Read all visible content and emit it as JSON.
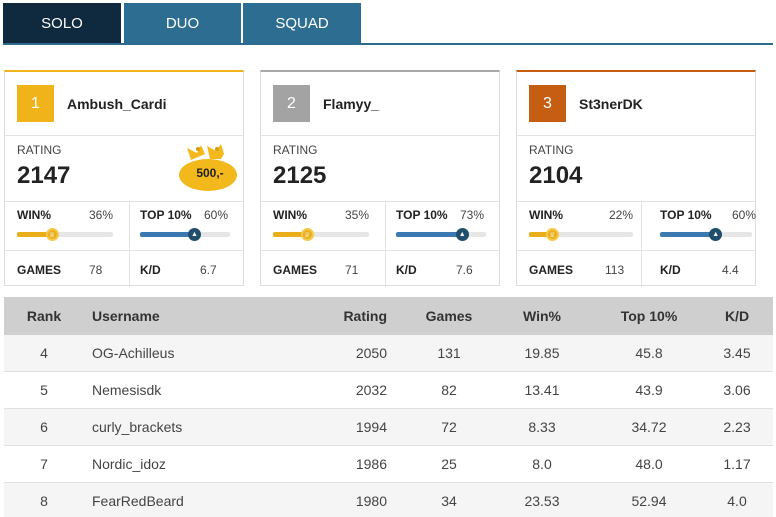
{
  "tabs": [
    {
      "label": "SOLO",
      "active": true
    },
    {
      "label": "DUO",
      "active": false
    },
    {
      "label": "SQUAD",
      "active": false
    }
  ],
  "labels": {
    "rating": "RATING",
    "win": "WIN%",
    "top10": "TOP 10%",
    "games": "GAMES",
    "kd": "K/D"
  },
  "podium": [
    {
      "rank": "1",
      "name": "Ambush_Cardi",
      "rating": "2147",
      "win": "36%",
      "win_fraction": 0.36,
      "top10": "60%",
      "top10_fraction": 0.6,
      "games": "78",
      "kd": "6.7",
      "prize": "500,-",
      "color": "#f0b41a"
    },
    {
      "rank": "2",
      "name": "Flamyy_",
      "rating": "2125",
      "win": "35%",
      "win_fraction": 0.35,
      "top10": "73%",
      "top10_fraction": 0.73,
      "games": "71",
      "kd": "7.6",
      "color": "#a3a3a3"
    },
    {
      "rank": "3",
      "name": "St3nerDK",
      "rating": "2104",
      "win": "22%",
      "win_fraction": 0.22,
      "top10": "60%",
      "top10_fraction": 0.6,
      "games": "113",
      "kd": "4.4",
      "color": "#c55e12"
    }
  ],
  "table": {
    "headers": [
      "Rank",
      "Username",
      "Rating",
      "Games",
      "Win%",
      "Top 10%",
      "K/D"
    ],
    "rows": [
      [
        "4",
        "OG-Achilleus",
        "2050",
        "131",
        "19.85",
        "45.8",
        "3.45"
      ],
      [
        "5",
        "Nemesisdk",
        "2032",
        "82",
        "13.41",
        "43.9",
        "3.06"
      ],
      [
        "6",
        "curly_brackets",
        "1994",
        "72",
        "8.33",
        "34.72",
        "2.23"
      ],
      [
        "7",
        "Nordic_idoz",
        "1986",
        "25",
        "8.0",
        "48.0",
        "1.17"
      ],
      [
        "8",
        "FearRedBeard",
        "1980",
        "34",
        "23.53",
        "52.94",
        "4.0"
      ]
    ]
  }
}
